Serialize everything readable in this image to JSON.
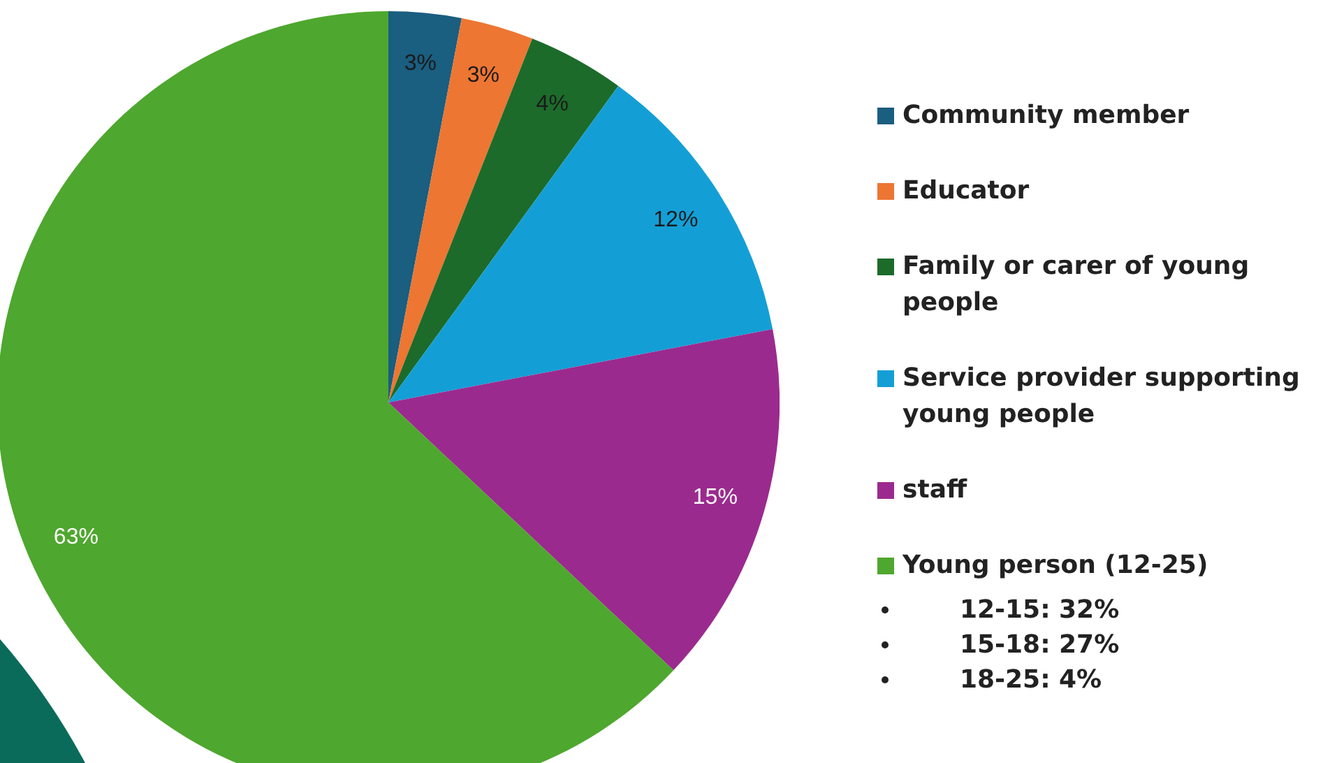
{
  "chart_data": {
    "type": "pie",
    "categories": [
      "Community member",
      "Educator",
      "Family or carer of young people",
      "Service provider supporting young people",
      "staff",
      "Young person (12-25)"
    ],
    "values": [
      3,
      3,
      4,
      12,
      15,
      63
    ],
    "colors": [
      "#1a5e80",
      "#ed7632",
      "#1c6b2a",
      "#139fd6",
      "#9b2a8e",
      "#4ea72e"
    ],
    "value_labels": [
      "3%",
      "3%",
      "4%",
      "12%",
      "15%",
      "63%"
    ],
    "legend": "right",
    "annotations": [
      "12-15: 32%",
      "15-18: 27%",
      "18-25: 4%"
    ]
  }
}
